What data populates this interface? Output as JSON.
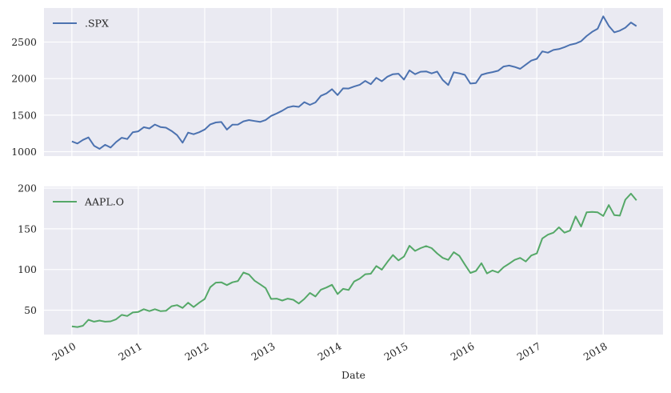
{
  "chart_data": [
    {
      "type": "line",
      "xlabel": "",
      "ylabel": "",
      "xlim": [
        2009.58,
        2018.9
      ],
      "ylim": [
        940,
        2966
      ],
      "yticks": [
        1000,
        1500,
        2000,
        2500
      ],
      "xticks": [
        2010,
        2011,
        2012,
        2013,
        2014,
        2015,
        2016,
        2017,
        2018
      ],
      "show_xticklabels": false,
      "grid": true,
      "legend_position": "upper-left",
      "series": [
        {
          "name": ".SPX",
          "color": "#4c72b0",
          "x_start": "2010-01",
          "x_step": "month",
          "values": [
            1140,
            1104,
            1169,
            1187,
            1089,
            1031,
            1102,
            1049,
            1141,
            1183,
            1181,
            1258,
            1286,
            1327,
            1326,
            1364,
            1345,
            1321,
            1292,
            1219,
            1131,
            1253,
            1247,
            1258,
            1312,
            1366,
            1408,
            1398,
            1310,
            1362,
            1379,
            1407,
            1441,
            1412,
            1416,
            1426,
            1498,
            1515,
            1569,
            1598,
            1631,
            1606,
            1686,
            1633,
            1682,
            1757,
            1806,
            1848,
            1783,
            1859,
            1872,
            1884,
            1924,
            1960,
            1931,
            2003,
            1972,
            2018,
            2068,
            2059,
            1995,
            2105,
            2068,
            2086,
            2107,
            2063,
            2104,
            1972,
            1920,
            2079,
            2080,
            2044,
            1940,
            1932,
            2060,
            2065,
            2097,
            2099,
            2174,
            2171,
            2168,
            2126,
            2199,
            2239,
            2279,
            2364,
            2363,
            2384,
            2412,
            2423,
            2470,
            2472,
            2519,
            2575,
            2648,
            2674,
            2860,
            2714,
            2641,
            2648,
            2705,
            2760,
            2718
          ]
        }
      ]
    },
    {
      "type": "line",
      "xlabel": "Date",
      "ylabel": "",
      "xlim": [
        2009.58,
        2018.9
      ],
      "ylim": [
        20,
        202
      ],
      "yticks": [
        50,
        100,
        150,
        200
      ],
      "xticks": [
        2010,
        2011,
        2012,
        2013,
        2014,
        2015,
        2016,
        2017,
        2018
      ],
      "xticklabels": [
        "2010",
        "2011",
        "2012",
        "2013",
        "2014",
        "2015",
        "2016",
        "2017",
        "2018"
      ],
      "grid": true,
      "legend_position": "upper-left",
      "series": [
        {
          "name": "AAPL.O",
          "color": "#55a868",
          "x_start": "2010-01",
          "x_step": "month",
          "values": [
            30,
            28,
            32,
            37,
            37,
            36,
            37,
            35,
            40,
            43,
            44,
            46,
            49,
            50,
            50,
            50,
            50,
            48,
            56,
            55,
            54,
            58,
            55,
            58,
            65,
            77,
            85,
            83,
            82,
            83,
            87,
            95,
            95,
            85,
            83,
            76,
            65,
            63,
            63,
            63,
            64,
            57,
            65,
            70,
            68,
            74,
            79,
            80,
            71,
            75,
            76,
            84,
            90,
            93,
            96,
            103,
            101,
            108,
            119,
            110,
            117,
            128,
            124,
            125,
            130,
            125,
            121,
            113,
            113,
            120,
            118,
            105,
            97,
            97,
            109,
            94,
            100,
            95,
            104,
            106,
            113,
            113,
            111,
            116,
            121,
            137,
            144,
            144,
            153,
            144,
            149,
            164,
            154,
            169,
            172,
            169,
            167,
            178,
            168,
            165,
            187,
            192,
            185
          ]
        }
      ]
    }
  ]
}
